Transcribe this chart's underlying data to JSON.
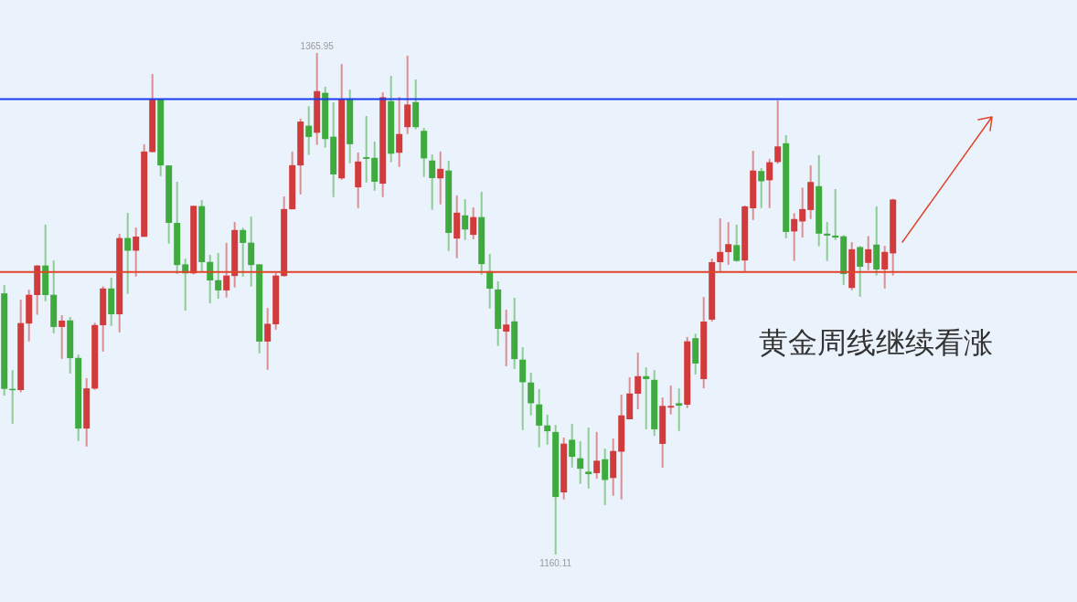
{
  "chart_data": {
    "type": "candlestick",
    "categories": [
      null,
      null,
      null,
      null,
      null,
      null,
      null,
      null,
      null,
      null,
      null,
      null,
      null,
      null,
      null,
      null,
      null,
      null,
      null,
      null,
      null,
      null,
      null,
      null,
      null,
      null,
      null,
      null,
      null,
      null,
      null,
      null,
      null,
      null,
      null,
      null,
      null,
      null,
      null,
      null,
      null,
      null,
      null,
      null,
      null,
      null,
      null,
      null,
      null,
      null,
      null,
      null,
      null,
      null,
      null,
      null,
      null,
      null,
      null,
      null,
      null,
      null,
      null,
      null,
      null,
      null,
      null,
      null,
      null,
      null,
      null,
      null,
      null,
      null,
      null,
      null,
      null,
      null,
      null,
      null,
      null,
      null,
      null,
      null,
      null,
      null,
      null,
      null,
      null,
      null,
      null,
      null,
      null,
      null,
      null,
      null,
      null,
      null,
      null,
      null,
      null,
      null,
      null,
      null,
      null,
      null,
      null,
      null,
      null
    ],
    "ohlc": [
      [
        1267.3,
        1270.7,
        1225.3,
        1228.1
      ],
      [
        1228.1,
        1235.8,
        1213.8,
        1227.7
      ],
      [
        1227.6,
        1264.7,
        1226.7,
        1255.1
      ],
      [
        1254.9,
        1268.8,
        1247.6,
        1266.7
      ],
      [
        1266.6,
        1278.9,
        1258.5,
        1278.7
      ],
      [
        1278.7,
        1295.5,
        1264.1,
        1266.6
      ],
      [
        1266.7,
        1280.8,
        1250.9,
        1253.5
      ],
      [
        1253.5,
        1258.3,
        1240.4,
        1256.1
      ],
      [
        1256.2,
        1257.6,
        1234.4,
        1240.7
      ],
      [
        1240.8,
        1242.2,
        1206.7,
        1211.8
      ],
      [
        1211.8,
        1232.5,
        1204.4,
        1228.3
      ],
      [
        1228.2,
        1255.2,
        1227.7,
        1254.3
      ],
      [
        1254.2,
        1270.2,
        1243.4,
        1269.3
      ],
      [
        1269.3,
        1273.7,
        1253.9,
        1258.7
      ],
      [
        1258.7,
        1291.7,
        1251.3,
        1290.0
      ],
      [
        1290.0,
        1300.3,
        1267.1,
        1284.8
      ],
      [
        1284.8,
        1294.3,
        1274.2,
        1290.6
      ],
      [
        1290.5,
        1328.5,
        1290.5,
        1325.5
      ],
      [
        1325.3,
        1357.3,
        1325.2,
        1346.8
      ],
      [
        1346.8,
        1347.1,
        1315.4,
        1319.8
      ],
      [
        1319.8,
        1319.9,
        1287.7,
        1296.2
      ],
      [
        1296.2,
        1313.1,
        1275.2,
        1278.9
      ],
      [
        1279.2,
        1281.5,
        1260.2,
        1275.5
      ],
      [
        1275.5,
        1303.2,
        1275.1,
        1303.2
      ],
      [
        1303.1,
        1305.6,
        1276.1,
        1280.1
      ],
      [
        1280.2,
        1283.1,
        1263.2,
        1272.6
      ],
      [
        1272.7,
        1283.8,
        1265.1,
        1268.5
      ],
      [
        1268.5,
        1288.0,
        1265.6,
        1274.6
      ],
      [
        1274.4,
        1296.6,
        1269.7,
        1293.3
      ],
      [
        1293.3,
        1294.2,
        1274.1,
        1288.0
      ],
      [
        1288.1,
        1298.8,
        1270.1,
        1278.9
      ],
      [
        1279.2,
        1279.2,
        1242.7,
        1247.5
      ],
      [
        1247.5,
        1261.3,
        1235.9,
        1254.8
      ],
      [
        1254.6,
        1275.6,
        1252.4,
        1274.6
      ],
      [
        1274.4,
        1307.1,
        1274.2,
        1301.9
      ],
      [
        1301.8,
        1325.5,
        1301.7,
        1319.9
      ],
      [
        1319.8,
        1339.0,
        1307.9,
        1337.8
      ],
      [
        1336.1,
        1344.1,
        1324.1,
        1331.5
      ],
      [
        1333.2,
        1365.95,
        1328.2,
        1350.3
      ],
      [
        1349.6,
        1352.1,
        1327.1,
        1330.6
      ],
      [
        1331.6,
        1345.7,
        1306.8,
        1316.1
      ],
      [
        1314.5,
        1361.4,
        1313.9,
        1347.1
      ],
      [
        1347.1,
        1350.9,
        1320.7,
        1328.5
      ],
      [
        1310.8,
        1325.1,
        1302.3,
        1321.4
      ],
      [
        1323.2,
        1340.1,
        1312.8,
        1322.5
      ],
      [
        1322.9,
        1329.6,
        1309.4,
        1313.1
      ],
      [
        1312.3,
        1349.8,
        1306.8,
        1347.8
      ],
      [
        1346.2,
        1356.6,
        1321.1,
        1324.6
      ],
      [
        1325.0,
        1347.9,
        1319.2,
        1332.7
      ],
      [
        1335.5,
        1364.8,
        1332.7,
        1344.8
      ],
      [
        1345.8,
        1355.1,
        1334.6,
        1335.5
      ],
      [
        1334.0,
        1335.2,
        1315.1,
        1322.7
      ],
      [
        1321.8,
        1324.3,
        1301.6,
        1314.6
      ],
      [
        1314.5,
        1325.5,
        1303.8,
        1318.4
      ],
      [
        1317.7,
        1321.7,
        1284.7,
        1292.1
      ],
      [
        1289.8,
        1307.5,
        1281.7,
        1300.4
      ],
      [
        1299.3,
        1305.9,
        1289.2,
        1293.5
      ],
      [
        1291.3,
        1302.6,
        1289.5,
        1298.6
      ],
      [
        1298.6,
        1309.0,
        1274.9,
        1279.3
      ],
      [
        1276.4,
        1283.5,
        1261.1,
        1269.2
      ],
      [
        1268.9,
        1272.2,
        1245.7,
        1252.7
      ],
      [
        1251.6,
        1260.6,
        1237.4,
        1254.5
      ],
      [
        1255.8,
        1265.5,
        1236.3,
        1240.3
      ],
      [
        1240.1,
        1245.2,
        1211.2,
        1230.8
      ],
      [
        1230.7,
        1234.7,
        1217.2,
        1222.2
      ],
      [
        1221.7,
        1228.0,
        1204.1,
        1213.0
      ],
      [
        1213.1,
        1217.5,
        1205.2,
        1210.7
      ],
      [
        1210.4,
        1213.3,
        1160.11,
        1183.7
      ],
      [
        1185.6,
        1208.1,
        1182.7,
        1205.6
      ],
      [
        1207.2,
        1213.7,
        1195.8,
        1200.2
      ],
      [
        1199.6,
        1206.6,
        1189.1,
        1195.3
      ],
      [
        1194.1,
        1212.2,
        1187.2,
        1193.1
      ],
      [
        1193.5,
        1210.4,
        1191.3,
        1198.6
      ],
      [
        1199.2,
        1203.6,
        1180.4,
        1190.7
      ],
      [
        1191.5,
        1207.7,
        1184.2,
        1202.6
      ],
      [
        1202.3,
        1225.7,
        1182.7,
        1217.2
      ],
      [
        1215.6,
        1232.8,
        1215.6,
        1226.2
      ],
      [
        1226.1,
        1243.0,
        1219.7,
        1233.3
      ],
      [
        1233.3,
        1236.9,
        1211.5,
        1232.1
      ],
      [
        1231.8,
        1235.8,
        1208.8,
        1211.5
      ],
      [
        1205.5,
        1224.6,
        1195.7,
        1221.1
      ],
      [
        1220.4,
        1229.5,
        1217.6,
        1221.1
      ],
      [
        1222.2,
        1228.3,
        1210.8,
        1221.2
      ],
      [
        1221.6,
        1249.4,
        1220.2,
        1247.6
      ],
      [
        1248.9,
        1250.8,
        1234.0,
        1238.5
      ],
      [
        1232.1,
        1265.8,
        1228.3,
        1255.7
      ],
      [
        1256.5,
        1281.6,
        1255.7,
        1280.1
      ],
      [
        1280.1,
        1298.1,
        1276.4,
        1284.3
      ],
      [
        1284.2,
        1296.5,
        1279.0,
        1287.5
      ],
      [
        1287.1,
        1295.5,
        1280.2,
        1280.6
      ],
      [
        1280.8,
        1303.3,
        1276.2,
        1303.0
      ],
      [
        1302.2,
        1325.8,
        1297.4,
        1317.7
      ],
      [
        1317.5,
        1318.7,
        1302.3,
        1313.3
      ],
      [
        1313.7,
        1322.5,
        1302.3,
        1321.1
      ],
      [
        1321.2,
        1346.5,
        1320.5,
        1327.6
      ],
      [
        1328.9,
        1332.2,
        1289.9,
        1292.5
      ],
      [
        1292.7,
        1300.2,
        1280.6,
        1297.8
      ],
      [
        1296.8,
        1310.7,
        1290.2,
        1301.9
      ],
      [
        1301.5,
        1319.8,
        1297.8,
        1313.0
      ],
      [
        1311.3,
        1324.0,
        1286.6,
        1291.8
      ],
      [
        1291.8,
        1296.6,
        1280.6,
        1291.0
      ],
      [
        1291.0,
        1310.1,
        1289.2,
        1290.2
      ],
      [
        1290.7,
        1291.2,
        1270.8,
        1275.2
      ],
      [
        1269.5,
        1288.3,
        1268.6,
        1285.4
      ],
      [
        1286.3,
        1286.7,
        1265.9,
        1278.2
      ],
      [
        1279.8,
        1290.8,
        1276.8,
        1285.4
      ],
      [
        1287.3,
        1303.0,
        1274.6,
        1277.1
      ],
      [
        1277.1,
        1286.8,
        1269.3,
        1284.3
      ],
      [
        1283.7,
        1306.1,
        1274.6,
        1305.8
      ]
    ],
    "colors": [
      "#3fab3f",
      "#3fab3f",
      "#d13b3b",
      "#d13b3b",
      "#d13b3b",
      "#3fab3f",
      "#3fab3f",
      "#d13b3b",
      "#3fab3f",
      "#3fab3f",
      "#d13b3b",
      "#d13b3b",
      "#d13b3b",
      "#3fab3f",
      "#d13b3b",
      "#3fab3f",
      "#d13b3b",
      "#d13b3b",
      "#d13b3b",
      "#3fab3f",
      "#3fab3f",
      "#3fab3f",
      "#3fab3f",
      "#d13b3b",
      "#3fab3f",
      "#3fab3f",
      "#3fab3f",
      "#d13b3b",
      "#d13b3b",
      "#3fab3f",
      "#3fab3f",
      "#3fab3f",
      "#d13b3b",
      "#d13b3b",
      "#d13b3b",
      "#d13b3b",
      "#d13b3b",
      "#3fab3f",
      "#d13b3b",
      "#3fab3f",
      "#3fab3f",
      "#d13b3b",
      "#3fab3f",
      "#d13b3b",
      "#3fab3f",
      "#3fab3f",
      "#d13b3b",
      "#3fab3f",
      "#d13b3b",
      "#d13b3b",
      "#3fab3f",
      "#3fab3f",
      "#3fab3f",
      "#d13b3b",
      "#3fab3f",
      "#d13b3b",
      "#3fab3f",
      "#d13b3b",
      "#3fab3f",
      "#3fab3f",
      "#3fab3f",
      "#d13b3b",
      "#3fab3f",
      "#3fab3f",
      "#3fab3f",
      "#3fab3f",
      "#3fab3f",
      "#3fab3f",
      "#d13b3b",
      "#3fab3f",
      "#3fab3f",
      "#3fab3f",
      "#d13b3b",
      "#3fab3f",
      "#d13b3b",
      "#d13b3b",
      "#d13b3b",
      "#d13b3b",
      "#3fab3f",
      "#3fab3f",
      "#d13b3b",
      "#d13b3b",
      "#3fab3f",
      "#d13b3b",
      "#3fab3f",
      "#d13b3b",
      "#d13b3b",
      "#d13b3b",
      "#d13b3b",
      "#3fab3f",
      "#d13b3b",
      "#d13b3b",
      "#3fab3f",
      "#d13b3b",
      "#d13b3b",
      "#3fab3f",
      "#d13b3b",
      "#d13b3b",
      "#d13b3b",
      "#3fab3f",
      "#3fab3f",
      "#3fab3f",
      "#3fab3f",
      "#d13b3b",
      "#3fab3f",
      "#d13b3b",
      "#3fab3f",
      "#d13b3b",
      "#d13b3b"
    ],
    "ref_lines": [
      {
        "axis": "y",
        "value": 1347.0,
        "label": null,
        "color": "#1a3cf0"
      },
      {
        "axis": "y",
        "value": 1276.1,
        "label": null,
        "color": "#e0432a"
      }
    ],
    "annotations": [
      {
        "text": "1365.95",
        "y": 1365.95
      },
      {
        "text": "1160.11",
        "y": 1160.11
      },
      "黄金周线继续看涨"
    ]
  }
}
